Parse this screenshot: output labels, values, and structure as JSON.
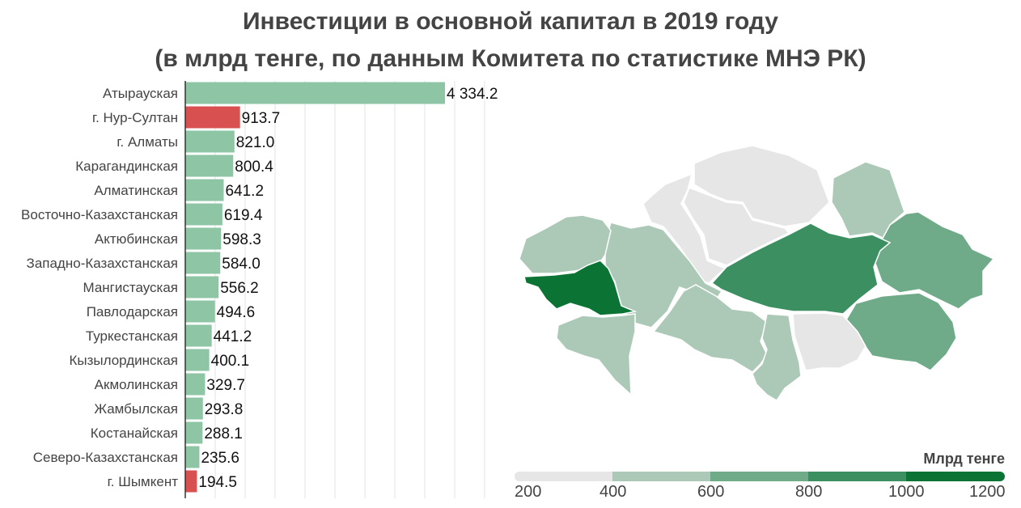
{
  "title": {
    "line1": "Инвестиции в основной капитал в 2019 году",
    "line2": "(в млрд тенге, по данным Комитета по статистике МНЭ РК)"
  },
  "colors": {
    "bar_default": "#8ec5a5",
    "bar_highlight": "#d95050",
    "map_bins": [
      "#e6e6e6",
      "#abc9b6",
      "#6fab89",
      "#3b8f61",
      "#0b7434"
    ]
  },
  "chart_data": {
    "type": "bar",
    "orientation": "horizontal",
    "categories": [
      "Атырауская",
      "г. Нур-Султан",
      "г. Алматы",
      "Карагандинская",
      "Алматинская",
      "Восточно-Казахстанская",
      "Актюбинская",
      "Западно-Казахстанская",
      "Мангистауская",
      "Павлодарская",
      "Туркестанская",
      "Кызылординская",
      "Акмолинская",
      "Жамбылская",
      "Костанайская",
      "Северо-Казахстанская",
      "г. Шымкент"
    ],
    "values": [
      4334.2,
      913.7,
      821.0,
      800.4,
      641.2,
      619.4,
      598.3,
      584.0,
      556.2,
      494.6,
      441.2,
      400.1,
      329.7,
      293.8,
      288.1,
      235.6,
      194.5
    ],
    "value_labels": [
      "4 334.2",
      "913.7",
      "821.0",
      "800.4",
      "641.2",
      "619.4",
      "598.3",
      "584.0",
      "556.2",
      "494.6",
      "441.2",
      "400.1",
      "329.7",
      "293.8",
      "288.1",
      "235.6",
      "194.5"
    ],
    "highlighted": [
      "г. Нур-Султан",
      "г. Шымкент"
    ],
    "grid": true
  },
  "legend": {
    "title": "Млрд тенге",
    "ticks": [
      "200",
      "400",
      "600",
      "800",
      "1000",
      "1200"
    ]
  }
}
